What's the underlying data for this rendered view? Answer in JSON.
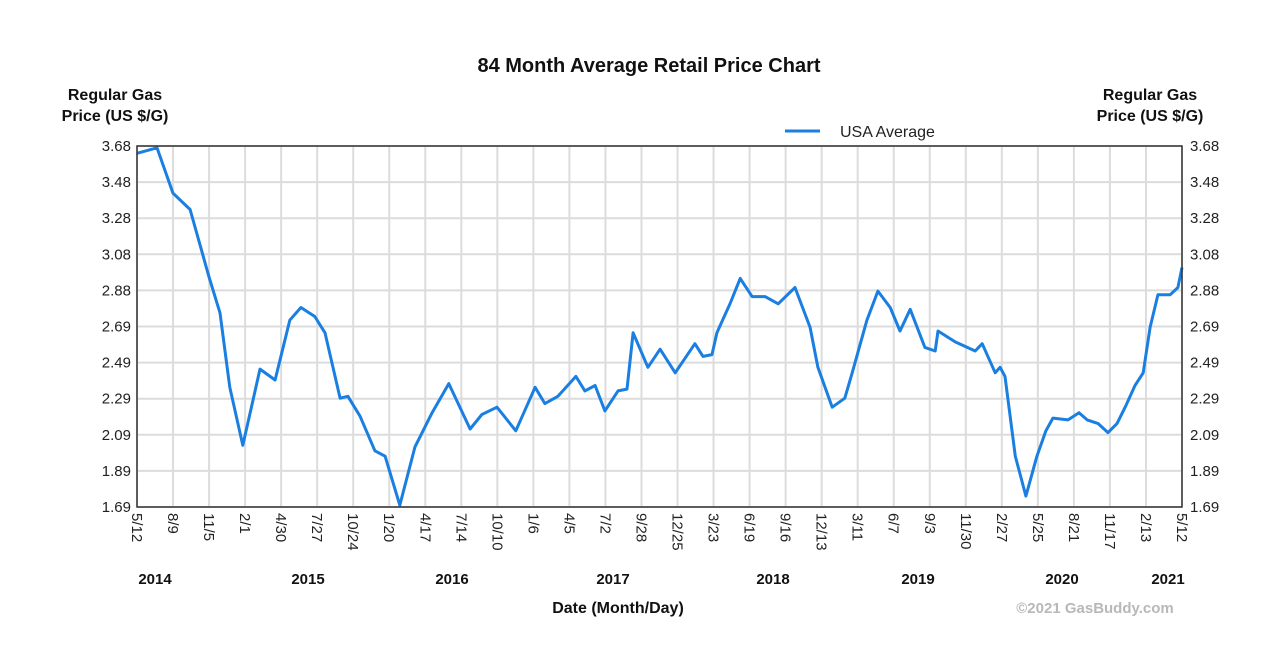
{
  "chart_data": {
    "type": "line",
    "title": "84 Month Average Retail Price Chart",
    "ylabel_left": [
      "Regular Gas",
      "Price (US $/G)"
    ],
    "ylabel_right": [
      "Regular Gas",
      "Price (US $/G)"
    ],
    "xlabel": "Date (Month/Day)",
    "credit": "©2021 GasBuddy.com",
    "legend": {
      "position": "top-right",
      "entries": [
        "USA Average"
      ]
    },
    "grid": true,
    "line_color": "#1a7fe0",
    "ylim": [
      1.69,
      3.68
    ],
    "xlim": [
      "2014-05-12",
      "2021-05-12"
    ],
    "y_ticks": [
      "3.68",
      "3.48",
      "3.28",
      "3.08",
      "2.88",
      "2.69",
      "2.49",
      "2.29",
      "2.09",
      "1.89",
      "1.69"
    ],
    "x_ticks": [
      "5/12",
      "8/9",
      "11/5",
      "2/1",
      "4/30",
      "7/27",
      "10/24",
      "1/20",
      "4/17",
      "7/14",
      "10/10",
      "1/6",
      "4/5",
      "7/2",
      "9/28",
      "12/25",
      "3/23",
      "6/19",
      "9/16",
      "12/13",
      "3/11",
      "6/7",
      "9/3",
      "11/30",
      "2/27",
      "5/25",
      "8/21",
      "11/17",
      "2/13",
      "5/12"
    ],
    "year_labels": [
      "2014",
      "2015",
      "2016",
      "2017",
      "2018",
      "2019",
      "2020",
      "2021"
    ],
    "series": [
      {
        "name": "USA Average",
        "points": [
          [
            "2014-05-12",
            3.64
          ],
          [
            "2014-06-30",
            3.67
          ],
          [
            "2014-08-08",
            3.42
          ],
          [
            "2014-09-19",
            3.33
          ],
          [
            "2014-11-04",
            2.96
          ],
          [
            "2014-12-01",
            2.76
          ],
          [
            "2014-12-25",
            2.35
          ],
          [
            "2015-01-26",
            2.03
          ],
          [
            "2015-03-09",
            2.45
          ],
          [
            "2015-04-15",
            2.39
          ],
          [
            "2015-05-21",
            2.72
          ],
          [
            "2015-06-17",
            2.79
          ],
          [
            "2015-07-21",
            2.74
          ],
          [
            "2015-08-15",
            2.65
          ],
          [
            "2015-09-21",
            2.29
          ],
          [
            "2015-10-10",
            2.3
          ],
          [
            "2015-11-09",
            2.19
          ],
          [
            "2015-12-15",
            2.0
          ],
          [
            "2016-01-09",
            1.97
          ],
          [
            "2016-02-14",
            1.7
          ],
          [
            "2016-03-22",
            2.02
          ],
          [
            "2016-05-03",
            2.21
          ],
          [
            "2016-06-13",
            2.37
          ],
          [
            "2016-08-04",
            2.12
          ],
          [
            "2016-09-02",
            2.2
          ],
          [
            "2016-10-09",
            2.24
          ],
          [
            "2016-11-24",
            2.11
          ],
          [
            "2017-01-10",
            2.35
          ],
          [
            "2017-02-03",
            2.26
          ],
          [
            "2017-03-07",
            2.3
          ],
          [
            "2017-04-20",
            2.41
          ],
          [
            "2017-05-12",
            2.33
          ],
          [
            "2017-06-06",
            2.36
          ],
          [
            "2017-06-30",
            2.22
          ],
          [
            "2017-08-01",
            2.33
          ],
          [
            "2017-08-23",
            2.34
          ],
          [
            "2017-09-07",
            2.65
          ],
          [
            "2017-10-13",
            2.46
          ],
          [
            "2017-11-12",
            2.56
          ],
          [
            "2017-12-19",
            2.43
          ],
          [
            "2018-02-05",
            2.59
          ],
          [
            "2018-02-25",
            2.52
          ],
          [
            "2018-03-19",
            2.53
          ],
          [
            "2018-03-31",
            2.65
          ],
          [
            "2018-05-02",
            2.81
          ],
          [
            "2018-05-27",
            2.95
          ],
          [
            "2018-06-25",
            2.85
          ],
          [
            "2018-07-27",
            2.85
          ],
          [
            "2018-08-28",
            2.81
          ],
          [
            "2018-10-08",
            2.9
          ],
          [
            "2018-11-14",
            2.68
          ],
          [
            "2018-12-03",
            2.46
          ],
          [
            "2019-01-07",
            2.24
          ],
          [
            "2019-02-07",
            2.29
          ],
          [
            "2019-02-25",
            2.43
          ],
          [
            "2019-04-02",
            2.72
          ],
          [
            "2019-04-29",
            2.88
          ],
          [
            "2019-05-29",
            2.79
          ],
          [
            "2019-06-22",
            2.66
          ],
          [
            "2019-07-17",
            2.78
          ],
          [
            "2019-08-22",
            2.57
          ],
          [
            "2019-09-16",
            2.55
          ],
          [
            "2019-09-23",
            2.66
          ],
          [
            "2019-11-04",
            2.6
          ],
          [
            "2019-12-23",
            2.55
          ],
          [
            "2020-01-09",
            2.59
          ],
          [
            "2020-02-10",
            2.43
          ],
          [
            "2020-02-22",
            2.46
          ],
          [
            "2020-03-05",
            2.41
          ],
          [
            "2020-03-30",
            1.97
          ],
          [
            "2020-04-25",
            1.75
          ],
          [
            "2020-05-22",
            1.97
          ],
          [
            "2020-06-13",
            2.11
          ],
          [
            "2020-06-30",
            2.18
          ],
          [
            "2020-08-06",
            2.17
          ],
          [
            "2020-09-02",
            2.21
          ],
          [
            "2020-09-22",
            2.17
          ],
          [
            "2020-10-19",
            2.15
          ],
          [
            "2020-11-12",
            2.1
          ],
          [
            "2020-12-04",
            2.15
          ],
          [
            "2020-12-26",
            2.25
          ],
          [
            "2021-01-17",
            2.36
          ],
          [
            "2021-02-06",
            2.43
          ],
          [
            "2021-02-23",
            2.68
          ],
          [
            "2021-03-14",
            2.86
          ],
          [
            "2021-04-13",
            2.86
          ],
          [
            "2021-05-02",
            2.9
          ],
          [
            "2021-05-12",
            3.01
          ]
        ]
      }
    ]
  }
}
